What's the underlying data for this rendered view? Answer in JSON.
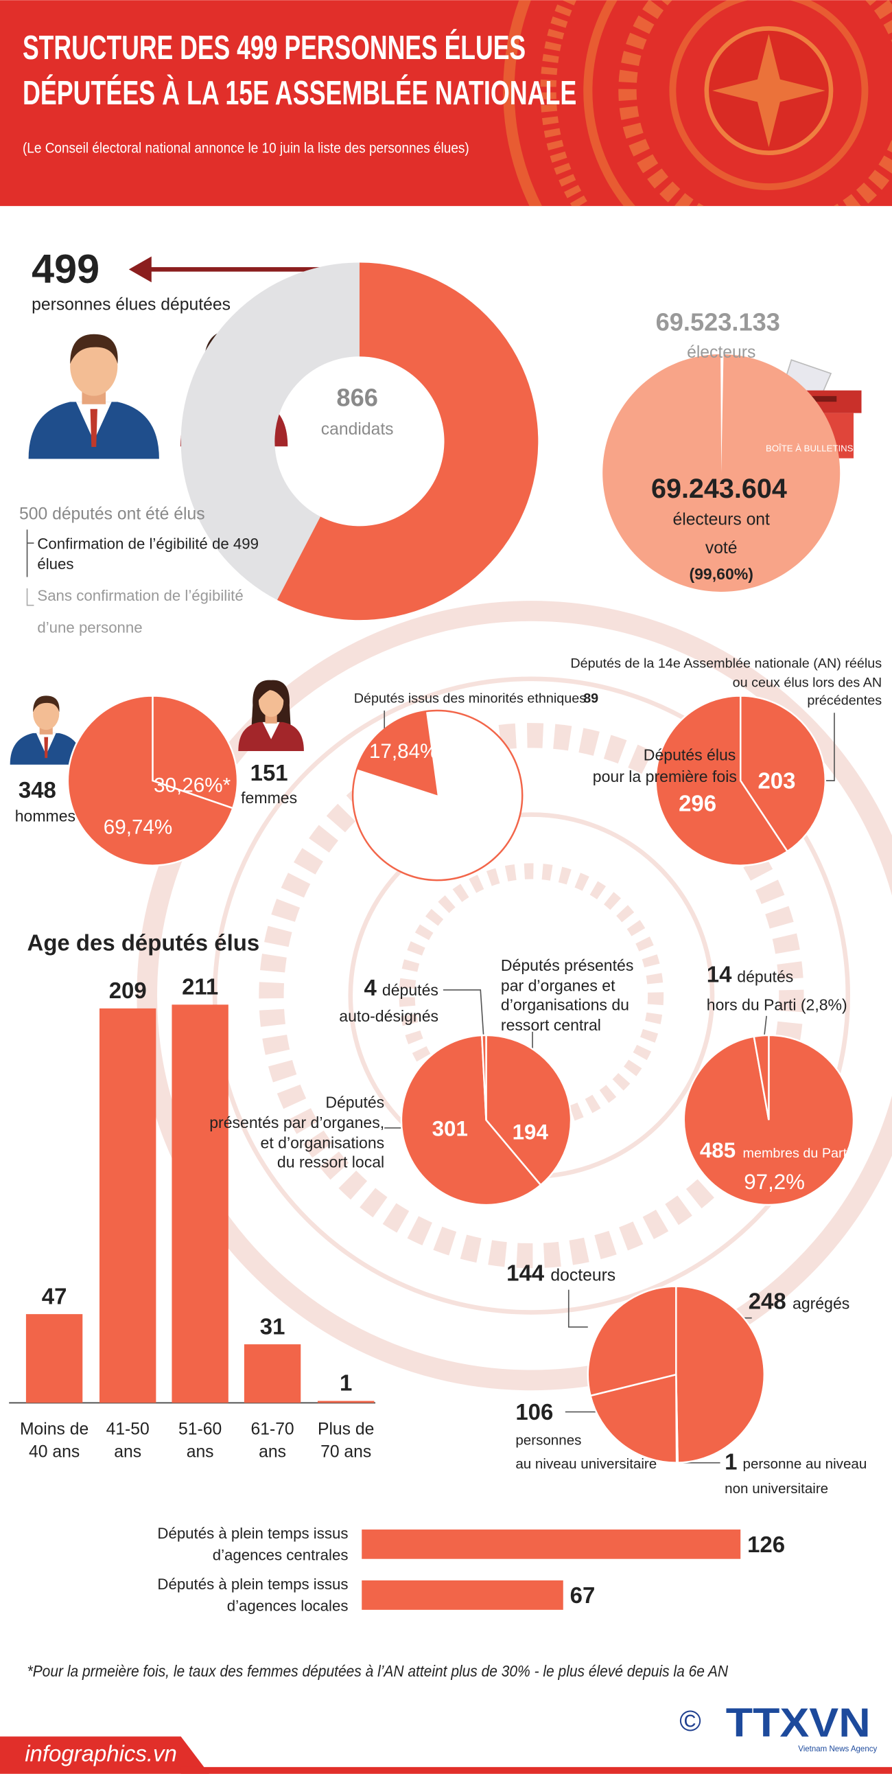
{
  "header": {
    "title_lines": [
      "STRUCTURE DES 499 PERSONNES ÉLUES",
      "DÉPUTÉES À LA 15E ASSEMBLÉE NATIONALE"
    ],
    "subtitle": "(Le Conseil électoral national annonce  le 10 juin la liste des personnes élues)"
  },
  "elected": {
    "value": 499,
    "label": "personnes élues députées",
    "candidates": 866,
    "candidates_label": "candidats",
    "note": "500 députés ont été élus",
    "items": [
      [
        "Confirmation de l’égibilité de 499",
        "élues"
      ],
      [
        "Sans confirmation de l’égibilité",
        "d’une personne"
      ]
    ]
  },
  "voters": {
    "registered": 69523133,
    "registered_text": "69.523.133",
    "registered_label": "électeurs",
    "voted": 69243604,
    "voted_text": "69.243.604",
    "voted_label": [
      "électeurs ont",
      "voté"
    ],
    "voted_pct": "(99,60%)",
    "box_label": "BOÎTE À BULLETINS"
  },
  "gender": {
    "men": 348,
    "men_label": "hommes",
    "men_pct": "69,74%",
    "women": 151,
    "women_label": "femmes",
    "women_pct": "30,26%*"
  },
  "minorities": {
    "caption": "Députés issus des minorités ethniques",
    "value": 89,
    "pct": "17,84%"
  },
  "reelected": {
    "caption": [
      "Députés de la 14e Assemblée nationale (AN) réélus",
      "ou ceux élus lors des AN",
      "précédentes"
    ],
    "value": 203,
    "first_label": [
      "Députés élus",
      "pour la première fois"
    ],
    "first": 296
  },
  "age": {
    "title": "Age des députés élus",
    "categories": [
      [
        "Moins de",
        "40 ans"
      ],
      [
        "41-50",
        "ans"
      ],
      [
        "51-60",
        "ans"
      ],
      [
        "61-70",
        "ans"
      ],
      [
        "Plus de",
        "70 ans"
      ]
    ],
    "values": [
      47,
      209,
      211,
      31,
      1
    ]
  },
  "nomination": {
    "self": 4,
    "self_label": "députés",
    "self_desc": "auto-désignés",
    "central": 194,
    "central_desc": [
      "Députés présentés",
      "par d’organes et",
      "d’organisations du",
      "ressort central"
    ],
    "local": 301,
    "local_desc": [
      "Députés",
      "présentés par d’organes,",
      "et d’organisations",
      "du ressort local"
    ]
  },
  "party": {
    "outside": 14,
    "outside_label": "députés",
    "outside_desc": "hors du Parti (2,8%)",
    "members": 485,
    "members_label": "membres du Parti",
    "members_pct": "97,2%"
  },
  "education": {
    "associate": 248,
    "associate_label": "agrégés",
    "non_university": 1,
    "non_university_label": [
      "personne au niveau",
      "non universitaire"
    ],
    "university": 106,
    "university_label": [
      "personnes",
      "au niveau universitaire"
    ],
    "doctors": 144,
    "doctors_label": "docteurs"
  },
  "fulltime": {
    "rows": [
      {
        "label": [
          "Députés à plein temps issus",
          "d’agences centrales"
        ],
        "value": 126
      },
      {
        "label": [
          "Députés à plein temps issus",
          "d’agences locales"
        ],
        "value": 67
      }
    ]
  },
  "footnote": "*Pour la prmeière fois, le taux des femmes députées à l’AN atteint plus de 30% - le plus élevé depuis la 6e AN",
  "footer": {
    "site": "infographics.vn",
    "copyright": "©",
    "agency": "TTXVN",
    "agency_sub": "Vietnam News Agency"
  }
}
